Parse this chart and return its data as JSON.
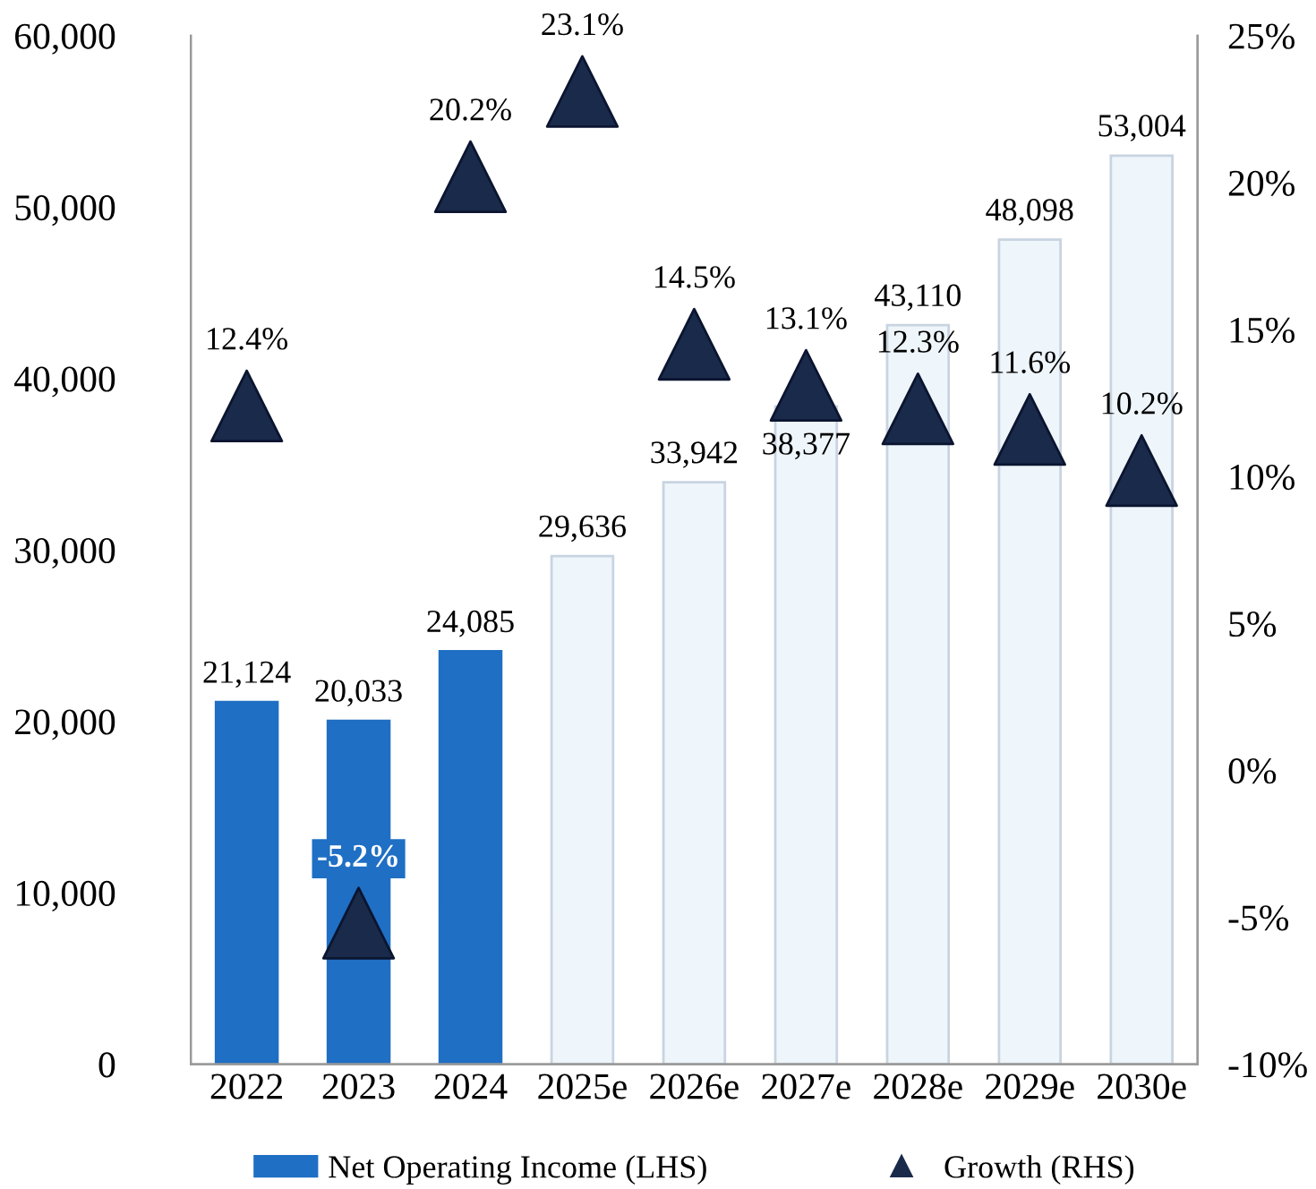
{
  "chart_data": {
    "type": "bar",
    "categories": [
      "2022",
      "2023",
      "2024",
      "2025e",
      "2026e",
      "2027e",
      "2028e",
      "2029e",
      "2030e"
    ],
    "series": [
      {
        "name": "Net Operating Income (LHS)",
        "color": "#1f6fc4",
        "colors": [
          "#1f6fc4",
          "#1f6fc4",
          "#1f6fc4",
          "#eef5fb",
          "#eef5fb",
          "#eef5fb",
          "#eef5fb",
          "#eef5fb",
          "#eef5fb"
        ],
        "values": [
          21124,
          20033,
          24085,
          29636,
          33942,
          38377,
          43110,
          48098,
          53004
        ],
        "value_labels": [
          "21,124",
          "20,033",
          "24,085",
          "29,636",
          "33,942",
          "38,377",
          "43,110",
          "48,098",
          "53,004"
        ]
      },
      {
        "name": "Growth (RHS)",
        "type": "scatter",
        "axis": "y2",
        "marker": "triangle",
        "color": "#1a2a4a",
        "values": [
          12.4,
          -5.2,
          20.2,
          23.1,
          14.5,
          13.1,
          12.3,
          11.6,
          10.2
        ],
        "value_labels": [
          "12.4%",
          "-5.2%",
          "20.2%",
          "23.1%",
          "14.5%",
          "13.1%",
          "12.3%",
          "11.6%",
          "10.2%"
        ]
      }
    ],
    "ylim": [
      0,
      60000
    ],
    "yticks": [
      {
        "value": 0,
        "label": "0"
      },
      {
        "value": 10000,
        "label": "10,000"
      },
      {
        "value": 20000,
        "label": "20,000"
      },
      {
        "value": 30000,
        "label": "30,000"
      },
      {
        "value": 40000,
        "label": "40,000"
      },
      {
        "value": 50000,
        "label": "50,000"
      },
      {
        "value": 60000,
        "label": "60,000"
      }
    ],
    "y2lim": [
      -10,
      25
    ],
    "y2ticks": [
      {
        "value": -10,
        "label": "-10%"
      },
      {
        "value": -5,
        "label": "-5%"
      },
      {
        "value": 0,
        "label": "0%"
      },
      {
        "value": 5,
        "label": "5%"
      },
      {
        "value": 10,
        "label": "10%"
      },
      {
        "value": 15,
        "label": "15%"
      },
      {
        "value": 20,
        "label": "20%"
      },
      {
        "value": 25,
        "label": "25%"
      }
    ],
    "grid": false,
    "legend": "bottom"
  }
}
